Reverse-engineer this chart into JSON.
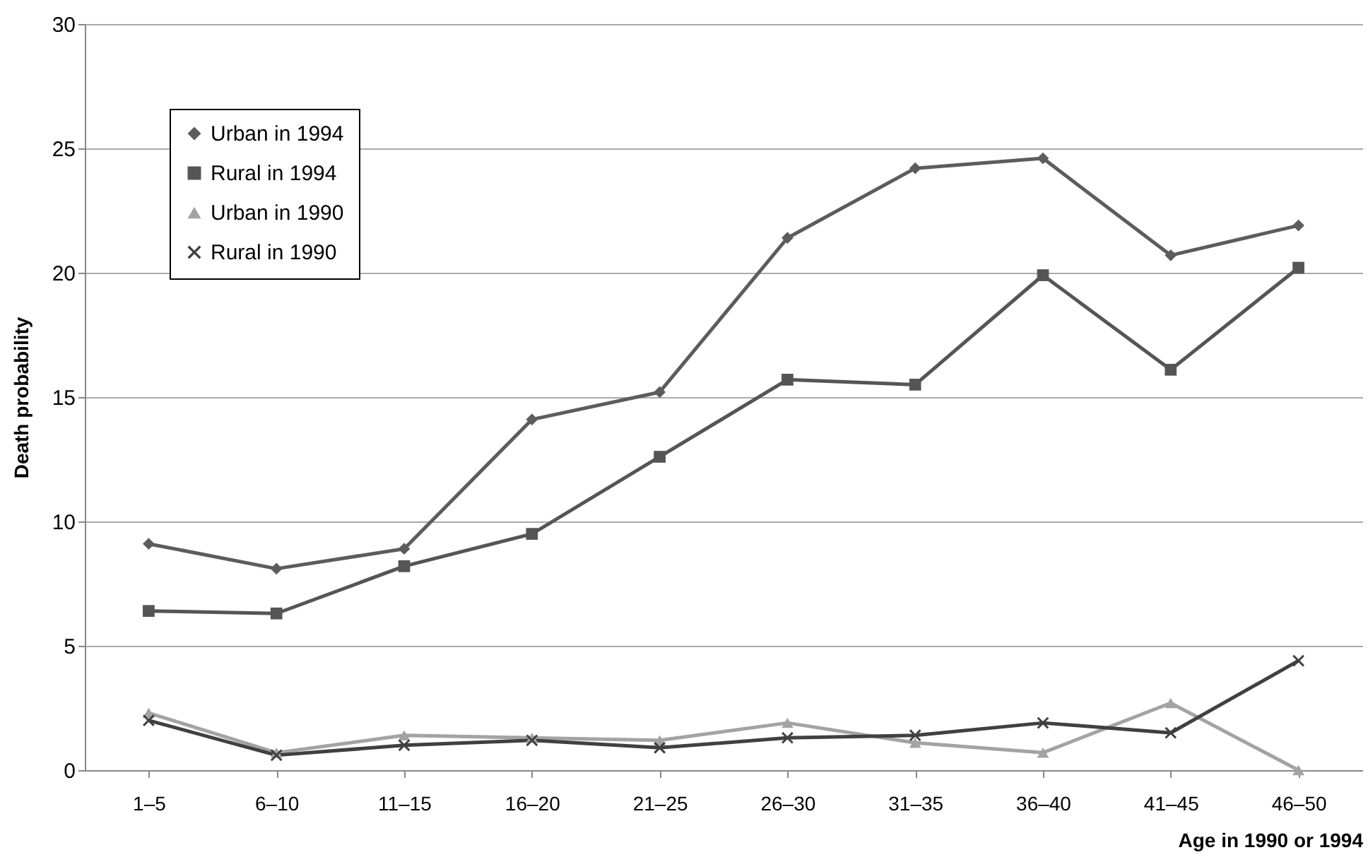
{
  "chart_data": {
    "type": "line",
    "xlabel": "Age in 1990 or 1994",
    "ylabel": "Death probability",
    "categories": [
      "1–5",
      "6–10",
      "11–15",
      "16–20",
      "21–25",
      "26–30",
      "31–35",
      "36–40",
      "41–45",
      "46–50"
    ],
    "series": [
      {
        "name": "Urban in 1994",
        "color": "#5c5c5c",
        "marker": "diamond",
        "values": [
          9.1,
          8.1,
          8.9,
          14.1,
          15.2,
          21.4,
          24.2,
          24.6,
          20.7,
          21.9
        ]
      },
      {
        "name": "Rural in 1994",
        "color": "#555555",
        "marker": "square",
        "values": [
          6.4,
          6.3,
          8.2,
          9.5,
          12.6,
          15.7,
          15.5,
          19.9,
          16.1,
          20.2
        ]
      },
      {
        "name": "Urban in 1990",
        "color": "#a3a3a3",
        "marker": "triangle",
        "values": [
          2.3,
          0.7,
          1.4,
          1.3,
          1.2,
          1.9,
          1.1,
          0.7,
          2.7,
          0.0
        ]
      },
      {
        "name": "Rural in 1990",
        "color": "#404040",
        "marker": "cross",
        "values": [
          2.0,
          0.6,
          1.0,
          1.2,
          0.9,
          1.3,
          1.4,
          1.9,
          1.5,
          4.4
        ]
      }
    ],
    "ylim": [
      0,
      30
    ],
    "yticks": [
      0,
      5,
      10,
      15,
      20,
      25,
      30
    ],
    "grid": "y",
    "legend": "top left"
  }
}
